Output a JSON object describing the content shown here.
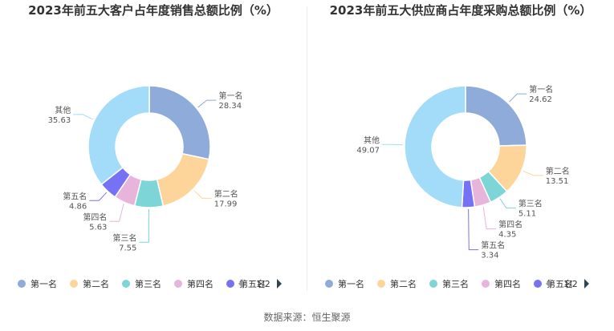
{
  "source": "数据来源：恒生聚源",
  "pager": {
    "text": "1/2",
    "prev_icon": "triangle-left-icon",
    "next_icon": "triangle-right-icon",
    "prev_color": "#999999",
    "next_color": "#2f4554"
  },
  "chart_data": [
    {
      "type": "pie",
      "title": "2023年前五大客户占年度销售总额比例（%）",
      "categories": [
        "第一名",
        "第二名",
        "第三名",
        "第四名",
        "第五名",
        "其他"
      ],
      "values": [
        28.34,
        17.99,
        7.55,
        5.63,
        4.86,
        35.63
      ],
      "value_labels": [
        "28.34",
        "17.99",
        "7.55",
        "5.63",
        "4.86",
        "35.63"
      ],
      "colors": [
        "#8eabd9",
        "#fdd59a",
        "#7dd5d8",
        "#e7b4dc",
        "#7671f5",
        "#a3dcf8"
      ],
      "legend": {
        "position": "bottom",
        "items": [
          "第一名",
          "第二名",
          "第三名",
          "第四名",
          "第五名"
        ]
      }
    },
    {
      "type": "pie",
      "title": "2023年前五大供应商占年度采购总额比例（%）",
      "categories": [
        "第一名",
        "第二名",
        "第三名",
        "第四名",
        "第五名",
        "其他"
      ],
      "values": [
        24.62,
        13.51,
        5.11,
        4.35,
        3.34,
        49.07
      ],
      "value_labels": [
        "24.62",
        "13.51",
        "5.11",
        "4.35",
        "3.34",
        "49.07"
      ],
      "colors": [
        "#8eabd9",
        "#fdd59a",
        "#7dd5d8",
        "#e7b4dc",
        "#7671f5",
        "#a3dcf8"
      ],
      "legend": {
        "position": "bottom",
        "items": [
          "第一名",
          "第二名",
          "第三名",
          "第四名",
          "第五名"
        ]
      }
    }
  ]
}
